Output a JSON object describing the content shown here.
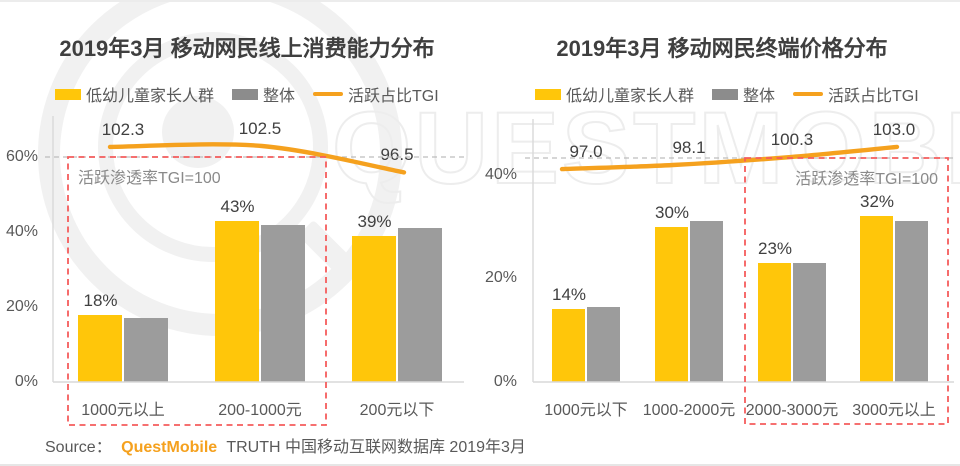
{
  "watermark": {
    "text": "QUESTMOBILE"
  },
  "source": {
    "prefix": "Source：",
    "brand": "QuestMobile",
    "suffix": "TRUTH 中国移动互联网数据库 2019年3月"
  },
  "colors": {
    "series1": "#FFC60A",
    "series2": "#9C9C9C",
    "accent": "#F5A11E",
    "highlight_box": "#F55C5C",
    "reference_dash": "#BDBDBD",
    "axis": "#D9D9D9",
    "title_text": "#3F3F3F",
    "label_text": "#404040",
    "muted_text": "#595959",
    "note_text": "#8A8A8A"
  },
  "chart_data": [
    {
      "type": "bar",
      "title": "2019年3月 移动网民线上消费能力分布",
      "categories": [
        "1000元以上",
        "200-1000元",
        "200元以下"
      ],
      "series": [
        {
          "name": "低幼儿童家长人群",
          "values": [
            18,
            43,
            39
          ],
          "labels": [
            "18%",
            "43%",
            "39%"
          ]
        },
        {
          "name": "整体",
          "values": [
            17,
            42,
            41
          ],
          "labels": [
            "",
            "",
            ""
          ]
        }
      ],
      "line": {
        "name": "活跃占比TGI",
        "values": [
          102.3,
          102.5,
          96.5
        ],
        "labels": [
          "102.3",
          "102.5",
          "96.5"
        ],
        "baseline": 100
      },
      "annotation": "活跃渗透率TGI=100",
      "highlighted_categories": [
        "1000元以上",
        "200-1000元"
      ],
      "ylim": [
        0,
        60
      ],
      "yticks": [
        {
          "value": 0,
          "label": "0%"
        },
        {
          "value": 20,
          "label": "20%"
        },
        {
          "value": 40,
          "label": "40%"
        },
        {
          "value": 60,
          "label": "60%"
        }
      ],
      "legend_position": "top",
      "grid": false
    },
    {
      "type": "bar",
      "title": "2019年3月 移动网民终端价格分布",
      "categories": [
        "1000元以下",
        "1000-2000元",
        "2000-3000元",
        "3000元以上"
      ],
      "series": [
        {
          "name": "低幼儿童家长人群",
          "values": [
            14,
            30,
            23,
            32
          ],
          "labels": [
            "14%",
            "30%",
            "23%",
            "32%"
          ]
        },
        {
          "name": "整体",
          "values": [
            14.5,
            31,
            23,
            31
          ],
          "labels": [
            "",
            "",
            "",
            ""
          ]
        }
      ],
      "line": {
        "name": "活跃占比TGI",
        "values": [
          97.0,
          98.1,
          100.3,
          103.0
        ],
        "labels": [
          "97.0",
          "98.1",
          "100.3",
          "103.0"
        ],
        "baseline": 100
      },
      "annotation": "活跃渗透率TGI=100",
      "highlighted_categories": [
        "2000-3000元",
        "3000元以上"
      ],
      "ylim": [
        0,
        40
      ],
      "yticks": [
        {
          "value": 0,
          "label": "0%"
        },
        {
          "value": 20,
          "label": "20%"
        },
        {
          "value": 40,
          "label": "40%"
        }
      ],
      "legend_position": "top",
      "grid": false
    }
  ]
}
